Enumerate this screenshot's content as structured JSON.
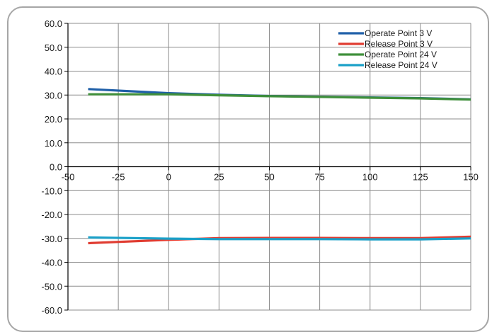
{
  "chart_data": {
    "type": "line",
    "title": "",
    "xlabel": "",
    "ylabel": "",
    "xlim": [
      -50,
      150
    ],
    "ylim": [
      -60,
      60
    ],
    "x_ticks": [
      -50,
      -25,
      0,
      25,
      50,
      75,
      100,
      125,
      150
    ],
    "x_tick_labels": [
      "-50",
      "-25",
      "0",
      "25",
      "50",
      "75",
      "100",
      "125",
      "150"
    ],
    "y_ticks": [
      60,
      50,
      40,
      30,
      20,
      10,
      0,
      -10,
      -20,
      -30,
      -40,
      -50,
      -60
    ],
    "y_tick_labels": [
      "60.0",
      "50.0",
      "40.0",
      "30.0",
      "20.0",
      "10.0",
      "0.0",
      "-10.0",
      "-20.0",
      "-30.0",
      "-40.0",
      "-50.0",
      "-60.0"
    ],
    "grid": true,
    "legend_position": "top-right",
    "series": [
      {
        "name": "Operate Point 3 V",
        "color": "#1f5fa8",
        "x": [
          -40,
          0,
          25,
          50,
          75,
          100,
          125,
          150
        ],
        "y": [
          32.5,
          30.8,
          30.1,
          29.6,
          29.3,
          29.0,
          28.7,
          28.2
        ]
      },
      {
        "name": "Release Point 3 V",
        "color": "#e03c31",
        "x": [
          -40,
          0,
          25,
          50,
          75,
          100,
          125,
          150
        ],
        "y": [
          -32.0,
          -30.6,
          -29.9,
          -29.8,
          -29.8,
          -29.9,
          -29.9,
          -29.3
        ]
      },
      {
        "name": "Operate Point 24 V",
        "color": "#3f8f3a",
        "x": [
          -40,
          0,
          25,
          50,
          75,
          100,
          125,
          150
        ],
        "y": [
          30.3,
          30.3,
          29.9,
          29.5,
          29.2,
          28.9,
          28.6,
          28.1
        ]
      },
      {
        "name": "Release Point 24 V",
        "color": "#1aa0c8",
        "x": [
          -40,
          0,
          25,
          50,
          75,
          100,
          125,
          150
        ],
        "y": [
          -29.6,
          -30.1,
          -30.3,
          -30.3,
          -30.3,
          -30.4,
          -30.4,
          -30.0
        ]
      }
    ]
  }
}
